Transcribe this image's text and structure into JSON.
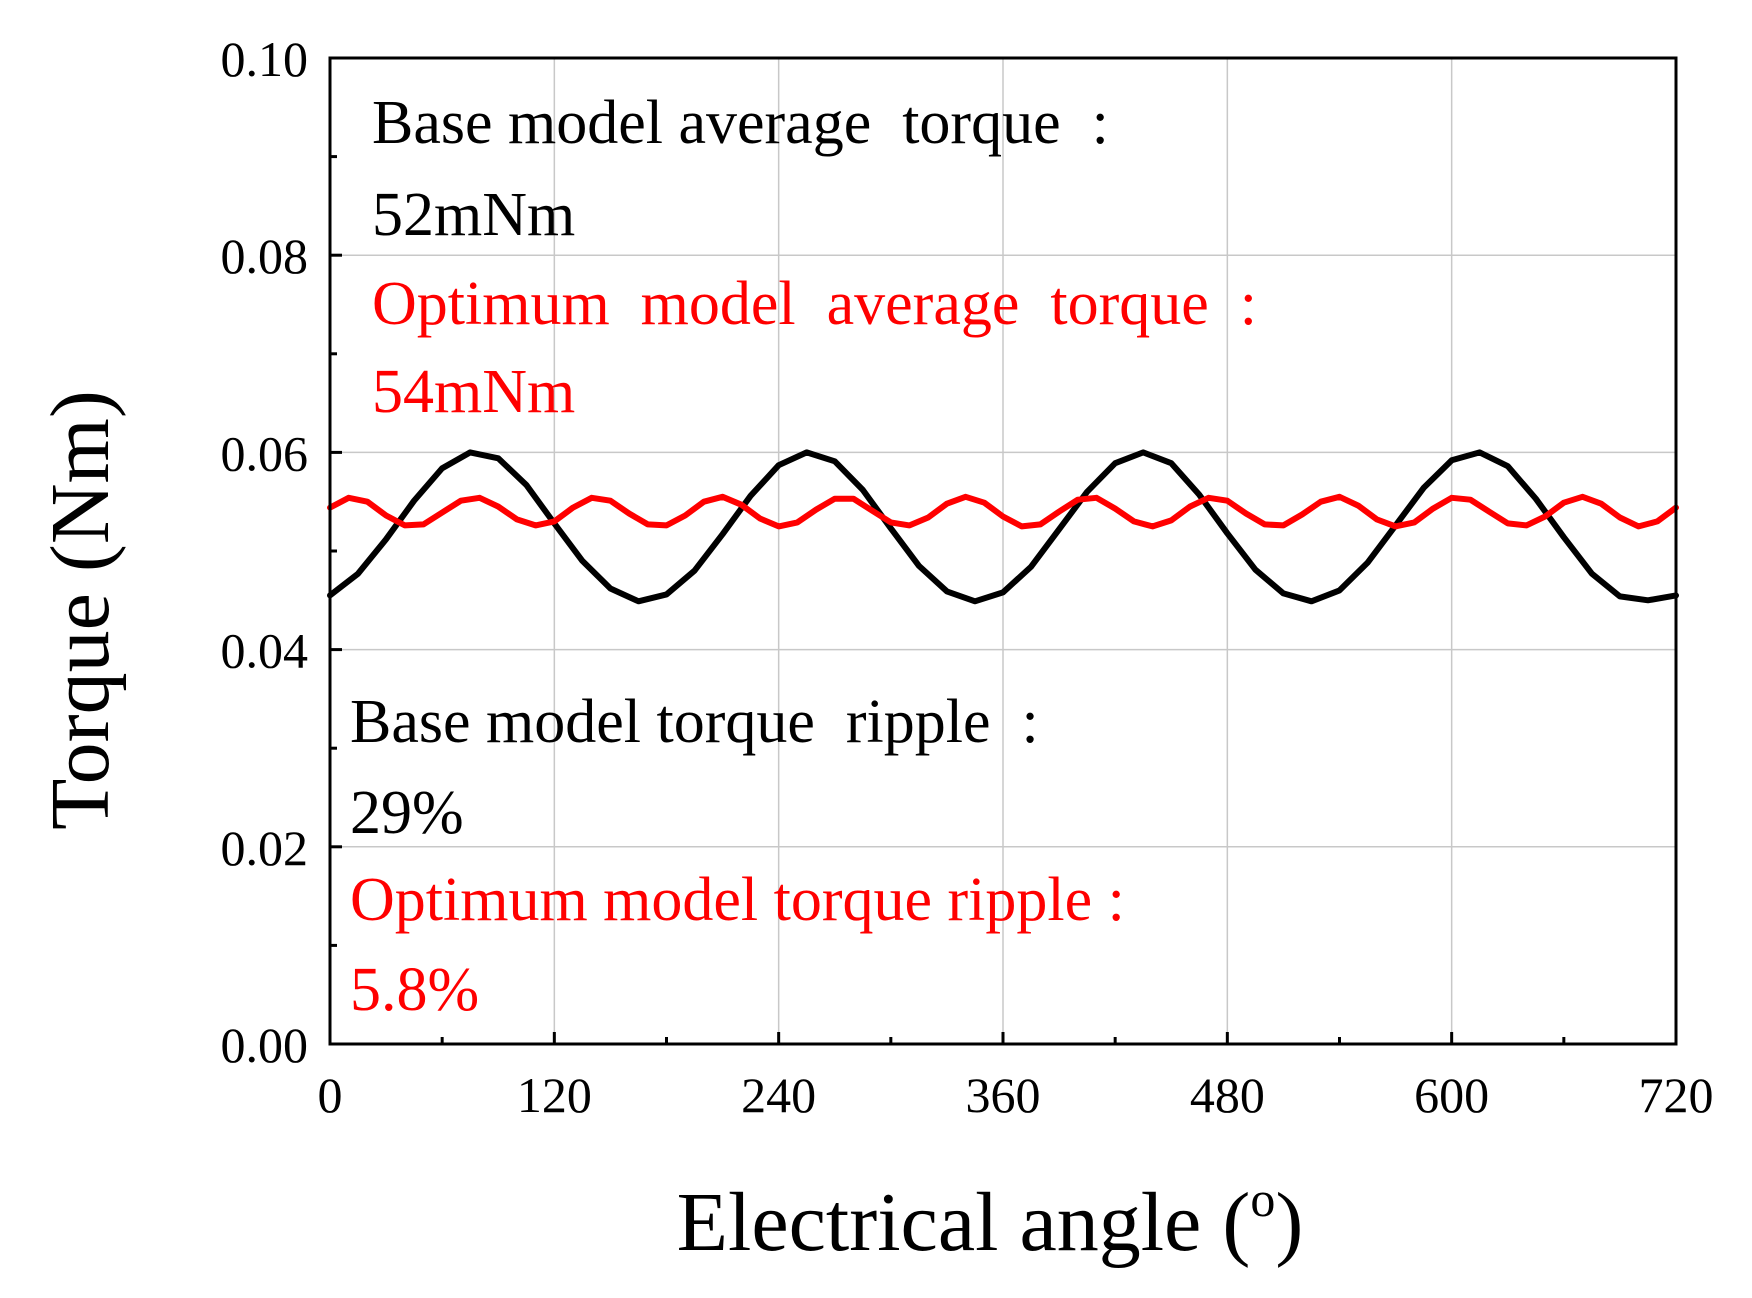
{
  "chart_data": {
    "type": "line",
    "title": "",
    "xlabel": "Electrical angle (",
    "xlabel_superscript": "o",
    "xlabel_suffix": ")",
    "ylabel": "Torque (Nm)",
    "xlim": [
      0,
      720
    ],
    "ylim": [
      0.0,
      0.1
    ],
    "x_ticks": [
      0,
      120,
      240,
      360,
      480,
      600,
      720
    ],
    "x_tick_labels": [
      "0",
      "120",
      "240",
      "360",
      "480",
      "600",
      "720"
    ],
    "y_ticks": [
      0.0,
      0.02,
      0.04,
      0.06,
      0.08,
      0.1
    ],
    "y_tick_labels": [
      "0.00",
      "0.02",
      "0.04",
      "0.06",
      "0.08",
      "0.10"
    ],
    "grid": true,
    "legend": "none",
    "series": [
      {
        "color": "#000000",
        "x": [
          0,
          15,
          30,
          45,
          60,
          75,
          90,
          105,
          120,
          135,
          150,
          165,
          180,
          195,
          210,
          225,
          240,
          255,
          270,
          285,
          300,
          315,
          330,
          345,
          360,
          375,
          390,
          405,
          420,
          435,
          450,
          465,
          480,
          495,
          510,
          525,
          540,
          555,
          570,
          585,
          600,
          615,
          630,
          645,
          660,
          675,
          690,
          705,
          720
        ],
        "values": [
          0.0455,
          0.0477,
          0.0512,
          0.0551,
          0.0584,
          0.06,
          0.0594,
          0.0567,
          0.0528,
          0.049,
          0.0462,
          0.0449,
          0.0456,
          0.048,
          0.0517,
          0.0556,
          0.0587,
          0.06,
          0.0591,
          0.0562,
          0.0523,
          0.0485,
          0.0459,
          0.0449,
          0.0458,
          0.0484,
          0.0522,
          0.056,
          0.0589,
          0.06,
          0.0589,
          0.0557,
          0.0518,
          0.0481,
          0.0457,
          0.0449,
          0.046,
          0.0488,
          0.0526,
          0.0564,
          0.0592,
          0.06,
          0.0586,
          0.0553,
          0.0514,
          0.0477,
          0.0454,
          0.045,
          0.0455
        ]
      },
      {
        "color": "#ff0000",
        "x": [
          0,
          10,
          20,
          30,
          40,
          50,
          60,
          70,
          80,
          90,
          100,
          110,
          120,
          130,
          140,
          150,
          160,
          170,
          180,
          190,
          200,
          210,
          220,
          230,
          240,
          250,
          260,
          270,
          280,
          290,
          300,
          310,
          320,
          330,
          340,
          350,
          360,
          370,
          380,
          390,
          400,
          410,
          420,
          430,
          440,
          450,
          460,
          470,
          480,
          490,
          500,
          510,
          520,
          530,
          540,
          550,
          560,
          570,
          580,
          590,
          600,
          610,
          620,
          630,
          640,
          650,
          660,
          670,
          680,
          690,
          700,
          710,
          720
        ],
        "values": [
          0.0544,
          0.0554,
          0.055,
          0.0536,
          0.0526,
          0.0527,
          0.0539,
          0.0551,
          0.0554,
          0.0545,
          0.0532,
          0.0526,
          0.053,
          0.0544,
          0.0554,
          0.0551,
          0.0538,
          0.0527,
          0.0526,
          0.0536,
          0.055,
          0.0555,
          0.0547,
          0.0533,
          0.0525,
          0.0529,
          0.0542,
          0.0553,
          0.0553,
          0.0541,
          0.0529,
          0.0526,
          0.0534,
          0.0548,
          0.0555,
          0.0549,
          0.0535,
          0.0525,
          0.0527,
          0.054,
          0.0552,
          0.0554,
          0.0543,
          0.053,
          0.0525,
          0.0531,
          0.0545,
          0.0554,
          0.0551,
          0.0538,
          0.0527,
          0.0526,
          0.0537,
          0.055,
          0.0555,
          0.0546,
          0.0532,
          0.0525,
          0.0529,
          0.0543,
          0.0554,
          0.0552,
          0.054,
          0.0528,
          0.0526,
          0.0535,
          0.0549,
          0.0555,
          0.0548,
          0.0534,
          0.0525,
          0.053,
          0.0544
        ]
      }
    ],
    "annotations": [
      {
        "text": "Base model average  torque  :",
        "color": "#000000"
      },
      {
        "text": "52mNm",
        "color": "#000000"
      },
      {
        "text": "Optimum  model  average  torque  :",
        "color": "#ff0000"
      },
      {
        "text": "54mNm",
        "color": "#ff0000"
      },
      {
        "text": "Base model torque  ripple  :",
        "color": "#000000"
      },
      {
        "text": "29%",
        "color": "#000000"
      },
      {
        "text": "Optimum model torque ripple :",
        "color": "#ff0000"
      },
      {
        "text": "5.8%",
        "color": "#ff0000"
      }
    ]
  }
}
